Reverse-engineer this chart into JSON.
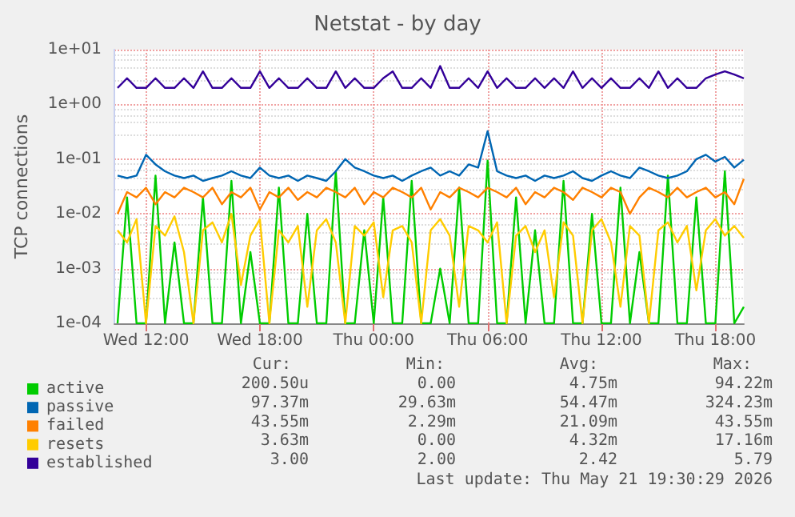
{
  "chart_data": {
    "type": "line",
    "title": "Netstat - by day",
    "ylabel": "TCP connections",
    "log": "y",
    "grid": true,
    "legend": "bottom left",
    "marker": "none",
    "line_style": "solid",
    "xlim": [
      "2026-05-20T10:20",
      "2026-05-21T19:30"
    ],
    "xticks": [
      {
        "value": "2026-05-20T12:00",
        "label": "Wed 12:00"
      },
      {
        "value": "2026-05-20T18:00",
        "label": "Wed 18:00"
      },
      {
        "value": "2026-05-21T00:00",
        "label": "Thu 00:00"
      },
      {
        "value": "2026-05-21T06:00",
        "label": "Thu 06:00"
      },
      {
        "value": "2026-05-21T12:00",
        "label": "Thu 12:00"
      },
      {
        "value": "2026-05-21T18:00",
        "label": "Thu 18:00"
      }
    ],
    "ylim": [
      0.0001,
      10
    ],
    "yticks": [
      {
        "value": 0.0001,
        "label": "1e-04"
      },
      {
        "value": 0.001,
        "label": "1e-03"
      },
      {
        "value": 0.01,
        "label": "1e-02"
      },
      {
        "value": 0.1,
        "label": "1e-01"
      },
      {
        "value": 1,
        "label": "1e+00"
      },
      {
        "value": 10,
        "label": "1e+01"
      }
    ],
    "x": [
      "2026-05-20T10:30",
      "2026-05-20T11:00",
      "2026-05-20T11:30",
      "2026-05-20T12:00",
      "2026-05-20T12:30",
      "2026-05-20T13:00",
      "2026-05-20T13:30",
      "2026-05-20T14:00",
      "2026-05-20T14:30",
      "2026-05-20T15:00",
      "2026-05-20T15:30",
      "2026-05-20T16:00",
      "2026-05-20T16:30",
      "2026-05-20T17:00",
      "2026-05-20T17:30",
      "2026-05-20T18:00",
      "2026-05-20T18:30",
      "2026-05-20T19:00",
      "2026-05-20T19:30",
      "2026-05-20T20:00",
      "2026-05-20T20:30",
      "2026-05-20T21:00",
      "2026-05-20T21:30",
      "2026-05-20T22:00",
      "2026-05-20T22:30",
      "2026-05-20T23:00",
      "2026-05-20T23:30",
      "2026-05-21T00:00",
      "2026-05-21T00:30",
      "2026-05-21T01:00",
      "2026-05-21T01:30",
      "2026-05-21T02:00",
      "2026-05-21T02:30",
      "2026-05-21T03:00",
      "2026-05-21T03:30",
      "2026-05-21T04:00",
      "2026-05-21T04:30",
      "2026-05-21T05:00",
      "2026-05-21T05:30",
      "2026-05-21T06:00",
      "2026-05-21T06:30",
      "2026-05-21T07:00",
      "2026-05-21T07:30",
      "2026-05-21T08:00",
      "2026-05-21T08:30",
      "2026-05-21T09:00",
      "2026-05-21T09:30",
      "2026-05-21T10:00",
      "2026-05-21T10:30",
      "2026-05-21T11:00",
      "2026-05-21T11:30",
      "2026-05-21T12:00",
      "2026-05-21T12:30",
      "2026-05-21T13:00",
      "2026-05-21T13:30",
      "2026-05-21T14:00",
      "2026-05-21T14:30",
      "2026-05-21T15:00",
      "2026-05-21T15:30",
      "2026-05-21T16:00",
      "2026-05-21T16:30",
      "2026-05-21T17:00",
      "2026-05-21T17:30",
      "2026-05-21T18:00",
      "2026-05-21T18:30",
      "2026-05-21T19:00",
      "2026-05-21T19:30"
    ],
    "series": [
      {
        "name": "active",
        "color": "#00cc00",
        "values": [
          0.0001,
          0.02,
          0.0001,
          0.0001,
          0.05,
          0.0001,
          0.003,
          0.0001,
          0.0001,
          0.02,
          0.0001,
          0.0001,
          0.04,
          0.0001,
          0.002,
          0.0001,
          0.0001,
          0.03,
          0.0001,
          0.0001,
          0.01,
          0.0001,
          0.0001,
          0.06,
          0.0001,
          0.0001,
          0.005,
          0.0001,
          0.02,
          0.0001,
          0.0001,
          0.04,
          0.0001,
          0.0001,
          0.001,
          0.0001,
          0.03,
          0.0001,
          0.0001,
          0.094,
          0.0001,
          0.0001,
          0.02,
          0.0001,
          0.005,
          0.0001,
          0.0001,
          0.04,
          0.0001,
          0.0001,
          0.01,
          0.0001,
          0.0001,
          0.03,
          0.0001,
          0.002,
          0.0001,
          0.0001,
          0.05,
          0.0001,
          0.0001,
          0.02,
          0.0001,
          0.0001,
          0.06,
          0.0001,
          0.0002
        ]
      },
      {
        "name": "passive",
        "color": "#0066b3",
        "values": [
          0.05,
          0.045,
          0.05,
          0.12,
          0.08,
          0.06,
          0.05,
          0.045,
          0.05,
          0.04,
          0.045,
          0.05,
          0.06,
          0.05,
          0.045,
          0.07,
          0.05,
          0.045,
          0.05,
          0.04,
          0.05,
          0.045,
          0.04,
          0.06,
          0.1,
          0.07,
          0.06,
          0.05,
          0.045,
          0.05,
          0.04,
          0.05,
          0.06,
          0.07,
          0.05,
          0.06,
          0.05,
          0.08,
          0.07,
          0.324,
          0.06,
          0.05,
          0.045,
          0.05,
          0.04,
          0.05,
          0.045,
          0.05,
          0.06,
          0.045,
          0.04,
          0.05,
          0.06,
          0.05,
          0.045,
          0.07,
          0.06,
          0.05,
          0.045,
          0.05,
          0.06,
          0.1,
          0.12,
          0.09,
          0.11,
          0.07,
          0.0974
        ]
      },
      {
        "name": "failed",
        "color": "#ff8000",
        "values": [
          0.01,
          0.025,
          0.02,
          0.03,
          0.015,
          0.025,
          0.02,
          0.03,
          0.025,
          0.02,
          0.03,
          0.015,
          0.025,
          0.02,
          0.03,
          0.012,
          0.025,
          0.02,
          0.03,
          0.018,
          0.025,
          0.02,
          0.03,
          0.025,
          0.02,
          0.03,
          0.015,
          0.025,
          0.02,
          0.03,
          0.025,
          0.02,
          0.03,
          0.012,
          0.025,
          0.02,
          0.03,
          0.025,
          0.02,
          0.03,
          0.025,
          0.02,
          0.03,
          0.015,
          0.025,
          0.02,
          0.03,
          0.025,
          0.018,
          0.03,
          0.025,
          0.02,
          0.03,
          0.025,
          0.01,
          0.02,
          0.03,
          0.025,
          0.02,
          0.03,
          0.02,
          0.025,
          0.03,
          0.02,
          0.025,
          0.015,
          0.0435
        ]
      },
      {
        "name": "resets",
        "color": "#ffcc00",
        "values": [
          0.005,
          0.003,
          0.008,
          0.0001,
          0.006,
          0.004,
          0.009,
          0.002,
          0.0001,
          0.005,
          0.007,
          0.003,
          0.01,
          0.0005,
          0.004,
          0.008,
          0.0001,
          0.005,
          0.003,
          0.006,
          0.0002,
          0.005,
          0.008,
          0.003,
          0.0001,
          0.006,
          0.004,
          0.007,
          0.0003,
          0.005,
          0.006,
          0.003,
          0.0001,
          0.005,
          0.008,
          0.004,
          0.0002,
          0.006,
          0.005,
          0.003,
          0.007,
          0.0001,
          0.004,
          0.006,
          0.002,
          0.005,
          0.0003,
          0.007,
          0.004,
          0.0001,
          0.005,
          0.008,
          0.003,
          0.0002,
          0.006,
          0.004,
          0.0001,
          0.005,
          0.007,
          0.003,
          0.006,
          0.0004,
          0.005,
          0.008,
          0.004,
          0.006,
          0.00363
        ]
      },
      {
        "name": "established",
        "color": "#330099",
        "values": [
          2,
          3,
          2,
          2,
          3,
          2,
          2,
          3,
          2,
          4,
          2,
          2,
          3,
          2,
          2,
          4,
          2,
          3,
          2,
          2,
          3,
          2,
          2,
          4,
          2,
          3,
          2,
          2,
          3,
          4,
          2,
          2,
          3,
          2,
          5,
          2,
          2,
          3,
          2,
          4,
          2,
          3,
          2,
          2,
          3,
          2,
          3,
          2,
          4,
          2,
          3,
          2,
          3,
          2,
          2,
          3,
          2,
          4,
          2,
          3,
          2,
          2,
          3,
          3.5,
          4,
          3.5,
          3
        ]
      }
    ],
    "annotations": [
      "Cur:",
      "Min:",
      "Avg:",
      "Max:",
      "200.50u",
      "0.00",
      "4.75m",
      "94.22m",
      "97.37m",
      "29.63m",
      "54.47m",
      "324.23m",
      "43.55m",
      "2.29m",
      "21.09m",
      "43.55m",
      "3.63m",
      "0.00",
      "4.32m",
      "17.16m",
      "3.00",
      "2.00",
      "2.42",
      "5.79",
      "Last update: Thu May 21 19:30:29 2026"
    ]
  }
}
